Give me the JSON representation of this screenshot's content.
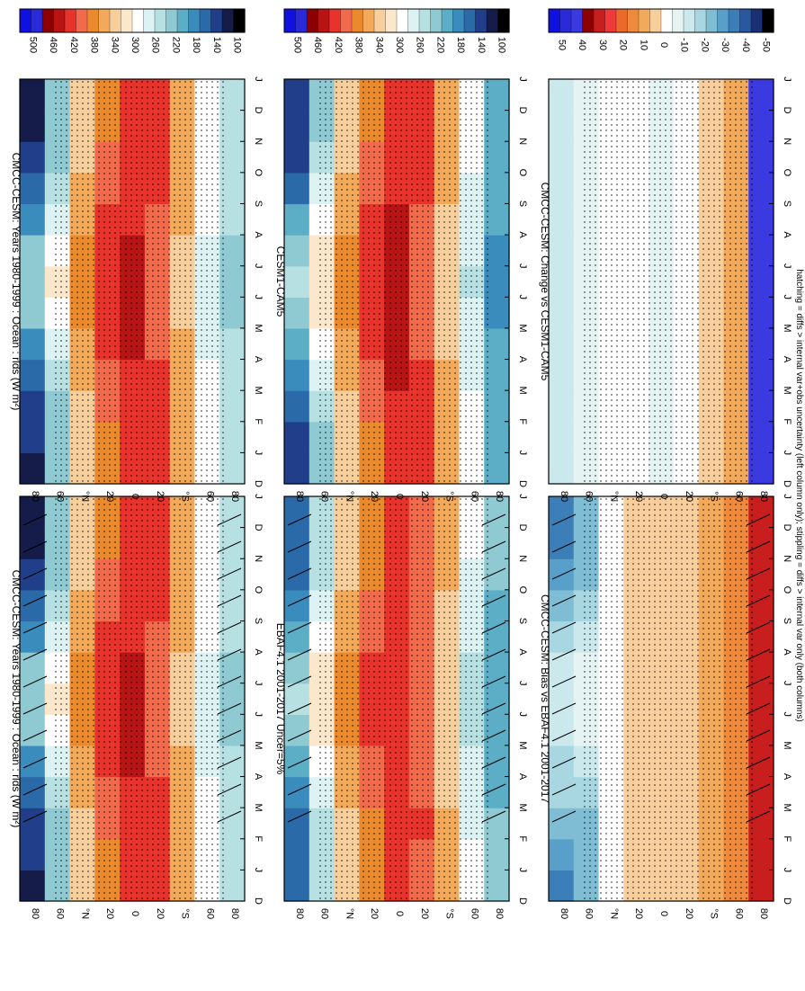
{
  "figure": {
    "footer": "hatching = diffs > internal var+obs uncertainty (left column only); stippling = diffs > internal var only (both columns)",
    "rotation_note": "page rotated 90 degrees; panels read with titles on the left side"
  },
  "chart_data": [
    {
      "type": "heatmap",
      "id": "p1",
      "title": "CMCC-CESM: Years 1980-1999 : Ocean : rlds (W m²)",
      "x": [
        "J",
        "F",
        "M",
        "A",
        "M",
        "J",
        "J",
        "A",
        "S",
        "O",
        "N",
        "D",
        "J"
      ],
      "xlabel_start": "D",
      "y_ticks": [
        "80",
        "60",
        "°N",
        "20",
        "0",
        "20",
        "°S",
        "60",
        "80"
      ],
      "colorbar": [
        "500",
        "460",
        "420",
        "380",
        "340",
        "300",
        "260",
        "220",
        "180",
        "140",
        "100"
      ],
      "hatching": true,
      "stippling": true,
      "z": [
        [
          140,
          150,
          160,
          180,
          200,
          230,
          240,
          230,
          200,
          170,
          150,
          140,
          140
        ],
        [
          230,
          235,
          240,
          260,
          280,
          300,
          310,
          300,
          280,
          260,
          240,
          230,
          230
        ],
        [
          330,
          330,
          340,
          350,
          360,
          370,
          380,
          370,
          360,
          350,
          340,
          330,
          330
        ],
        [
          380,
          380,
          385,
          395,
          405,
          410,
          415,
          410,
          405,
          395,
          385,
          380,
          380
        ],
        [
          410,
          410,
          415,
          420,
          425,
          425,
          425,
          425,
          420,
          415,
          410,
          410,
          410
        ],
        [
          405,
          405,
          410,
          405,
          400,
          395,
          390,
          395,
          400,
          405,
          405,
          405,
          405
        ],
        [
          360,
          360,
          355,
          350,
          345,
          340,
          335,
          340,
          345,
          350,
          355,
          360,
          360
        ],
        [
          300,
          300,
          295,
          290,
          280,
          275,
          270,
          275,
          285,
          290,
          295,
          300,
          300
        ],
        [
          260,
          260,
          255,
          250,
          245,
          240,
          235,
          240,
          245,
          250,
          255,
          260,
          260
        ]
      ]
    },
    {
      "type": "heatmap",
      "id": "p2",
      "title": "EBAF4.1 2001-2017 Uncer=5%",
      "x": [
        "J",
        "F",
        "M",
        "A",
        "M",
        "J",
        "J",
        "A",
        "S",
        "O",
        "N",
        "D",
        "J"
      ],
      "xlabel_start": "D",
      "y_ticks": [
        "80",
        "60",
        "°N",
        "20",
        "0",
        "20",
        "°S",
        "60",
        "80"
      ],
      "colorbar": [
        "500",
        "460",
        "420",
        "380",
        "340",
        "300",
        "260",
        "220",
        "180",
        "140",
        "100"
      ],
      "hatching": true,
      "stippling": true,
      "z": [
        [
          170,
          175,
          180,
          195,
          215,
          240,
          250,
          240,
          215,
          190,
          175,
          170,
          170
        ],
        [
          250,
          255,
          260,
          275,
          290,
          305,
          315,
          305,
          290,
          275,
          260,
          250,
          250
        ],
        [
          330,
          330,
          340,
          350,
          360,
          370,
          380,
          370,
          360,
          350,
          340,
          330,
          330
        ],
        [
          375,
          375,
          380,
          390,
          400,
          405,
          410,
          405,
          400,
          390,
          380,
          375,
          375
        ],
        [
          405,
          405,
          410,
          415,
          420,
          420,
          420,
          420,
          415,
          410,
          405,
          405,
          405
        ],
        [
          400,
          400,
          405,
          400,
          395,
          390,
          385,
          390,
          395,
          400,
          400,
          400,
          400
        ],
        [
          350,
          350,
          345,
          340,
          335,
          330,
          325,
          330,
          335,
          340,
          345,
          350,
          350
        ],
        [
          285,
          285,
          280,
          275,
          265,
          260,
          255,
          260,
          270,
          275,
          280,
          285,
          285
        ],
        [
          230,
          230,
          225,
          220,
          215,
          210,
          205,
          210,
          215,
          220,
          225,
          230,
          230
        ]
      ]
    },
    {
      "type": "heatmap",
      "id": "p3",
      "title": "CMCC-CESM: Bias vs EBAF4.1 2001-2017",
      "x": [
        "J",
        "F",
        "M",
        "A",
        "M",
        "J",
        "J",
        "A",
        "S",
        "O",
        "N",
        "D",
        "J"
      ],
      "xlabel_start": "D",
      "y_ticks": [
        "80",
        "60",
        "°N",
        "20",
        "0",
        "20",
        "°S",
        "60",
        "80"
      ],
      "colorbar": [
        "50",
        "40",
        "30",
        "20",
        "10",
        "0",
        "-10",
        "-20",
        "-30",
        "-40",
        "-50"
      ],
      "hatching": true,
      "stippling": true,
      "z": [
        [
          -30,
          -25,
          -20,
          -15,
          -15,
          -10,
          -10,
          -10,
          -15,
          -20,
          -25,
          -30,
          -30
        ],
        [
          -20,
          -20,
          -20,
          -15,
          -10,
          -5,
          -5,
          -5,
          -10,
          -15,
          -20,
          -20,
          -20
        ],
        [
          0,
          0,
          0,
          0,
          0,
          0,
          0,
          0,
          0,
          0,
          0,
          0,
          0
        ],
        [
          5,
          5,
          5,
          5,
          5,
          5,
          5,
          5,
          5,
          5,
          5,
          5,
          5
        ],
        [
          5,
          5,
          5,
          5,
          5,
          5,
          5,
          5,
          5,
          5,
          5,
          5,
          5
        ],
        [
          5,
          5,
          5,
          5,
          5,
          5,
          5,
          5,
          5,
          5,
          5,
          5,
          5
        ],
        [
          10,
          10,
          10,
          10,
          10,
          10,
          10,
          10,
          10,
          10,
          10,
          10,
          10
        ],
        [
          15,
          15,
          15,
          15,
          15,
          15,
          15,
          15,
          15,
          15,
          15,
          15,
          15
        ],
        [
          30,
          30,
          30,
          30,
          30,
          30,
          30,
          30,
          30,
          30,
          30,
          30,
          30
        ]
      ]
    },
    {
      "type": "heatmap",
      "id": "p4",
      "title": "CMCC-CESM: Years 1980-1999 : Ocean : rlds (W m²)",
      "x": [
        "J",
        "F",
        "M",
        "A",
        "M",
        "J",
        "J",
        "A",
        "S",
        "O",
        "N",
        "D",
        "J"
      ],
      "xlabel_start": "D",
      "y_ticks": [
        "80",
        "60",
        "°N",
        "20",
        "0",
        "20",
        "°S",
        "60",
        "80"
      ],
      "colorbar": [
        "500",
        "460",
        "420",
        "380",
        "340",
        "300",
        "260",
        "220",
        "180",
        "140",
        "100"
      ],
      "hatching": false,
      "stippling": true,
      "z": [
        [
          140,
          150,
          160,
          180,
          200,
          230,
          240,
          230,
          200,
          170,
          150,
          140,
          140
        ],
        [
          230,
          235,
          240,
          260,
          280,
          300,
          310,
          300,
          280,
          260,
          240,
          230,
          230
        ],
        [
          330,
          330,
          340,
          350,
          360,
          370,
          380,
          370,
          360,
          350,
          340,
          330,
          330
        ],
        [
          380,
          380,
          385,
          395,
          405,
          410,
          415,
          410,
          405,
          395,
          385,
          380,
          380
        ],
        [
          410,
          410,
          415,
          420,
          425,
          425,
          425,
          425,
          420,
          415,
          410,
          410,
          410
        ],
        [
          405,
          405,
          410,
          405,
          400,
          395,
          390,
          395,
          400,
          405,
          405,
          405,
          405
        ],
        [
          360,
          360,
          355,
          350,
          345,
          340,
          335,
          340,
          345,
          350,
          355,
          360,
          360
        ],
        [
          300,
          300,
          295,
          290,
          280,
          275,
          270,
          275,
          285,
          290,
          295,
          300,
          300
        ],
        [
          260,
          260,
          255,
          250,
          245,
          240,
          235,
          240,
          245,
          250,
          255,
          260,
          260
        ]
      ]
    },
    {
      "type": "heatmap",
      "id": "p5",
      "title": "CESM1-CAM5",
      "x": [
        "J",
        "F",
        "M",
        "A",
        "M",
        "J",
        "J",
        "A",
        "S",
        "O",
        "N",
        "D",
        "J"
      ],
      "xlabel_start": "D",
      "y_ticks": [
        "80",
        "60",
        "°N",
        "20",
        "0",
        "20",
        "°S",
        "60",
        "80"
      ],
      "colorbar": [
        "500",
        "460",
        "420",
        "380",
        "340",
        "300",
        "260",
        "220",
        "180",
        "140",
        "100"
      ],
      "hatching": false,
      "stippling": true,
      "z": [
        [
          150,
          160,
          170,
          190,
          210,
          240,
          250,
          240,
          210,
          180,
          160,
          150,
          150
        ],
        [
          235,
          240,
          245,
          265,
          285,
          305,
          315,
          305,
          285,
          265,
          245,
          235,
          235
        ],
        [
          330,
          330,
          340,
          350,
          360,
          370,
          380,
          370,
          360,
          350,
          340,
          330,
          330
        ],
        [
          380,
          380,
          385,
          395,
          405,
          410,
          415,
          410,
          405,
          395,
          385,
          380,
          380
        ],
        [
          415,
          415,
          420,
          425,
          430,
          430,
          430,
          430,
          425,
          420,
          415,
          415,
          415
        ],
        [
          405,
          405,
          410,
          405,
          400,
          395,
          390,
          395,
          400,
          405,
          405,
          405,
          405
        ],
        [
          355,
          355,
          350,
          345,
          340,
          335,
          330,
          335,
          340,
          345,
          350,
          355,
          355
        ],
        [
          290,
          290,
          285,
          280,
          270,
          265,
          260,
          265,
          275,
          280,
          285,
          290,
          290
        ],
        [
          220,
          220,
          215,
          210,
          205,
          200,
          195,
          200,
          205,
          210,
          215,
          220,
          220
        ]
      ]
    },
    {
      "type": "heatmap",
      "id": "p6",
      "title": "CMCC-CESM: Change vs CESM1-CAM5",
      "x": [
        "J",
        "F",
        "M",
        "A",
        "M",
        "J",
        "J",
        "A",
        "S",
        "O",
        "N",
        "D",
        "J"
      ],
      "xlabel_start": "D",
      "y_ticks": [
        "80",
        "60",
        "°N",
        "20",
        "0",
        "20",
        "°S",
        "60",
        "80"
      ],
      "colorbar": [
        "50",
        "40",
        "30",
        "20",
        "10",
        "0",
        "-10",
        "-20",
        "-30",
        "-40",
        "-50"
      ],
      "hatching": false,
      "stippling": true,
      "z": [
        [
          -10,
          -10,
          -10,
          -10,
          -10,
          -10,
          -10,
          -10,
          -10,
          -10,
          -10,
          -10,
          -10
        ],
        [
          -5,
          -5,
          -5,
          -5,
          -5,
          -5,
          -5,
          -5,
          -5,
          -5,
          -5,
          -5,
          -5
        ],
        [
          0,
          0,
          0,
          0,
          0,
          0,
          0,
          0,
          0,
          0,
          0,
          0,
          0
        ],
        [
          0,
          0,
          0,
          0,
          0,
          0,
          0,
          0,
          0,
          0,
          0,
          0,
          0
        ],
        [
          -5,
          -5,
          -5,
          -5,
          -5,
          -5,
          -5,
          -5,
          -5,
          -5,
          -5,
          -5,
          -5
        ],
        [
          0,
          0,
          0,
          0,
          0,
          0,
          0,
          0,
          0,
          0,
          0,
          0,
          0
        ],
        [
          5,
          5,
          5,
          5,
          5,
          5,
          5,
          5,
          5,
          5,
          5,
          5,
          5
        ],
        [
          10,
          10,
          10,
          10,
          10,
          10,
          10,
          10,
          10,
          10,
          10,
          10,
          10
        ],
        [
          40,
          40,
          40,
          40,
          40,
          40,
          40,
          40,
          40,
          40,
          40,
          40,
          40
        ]
      ]
    }
  ]
}
